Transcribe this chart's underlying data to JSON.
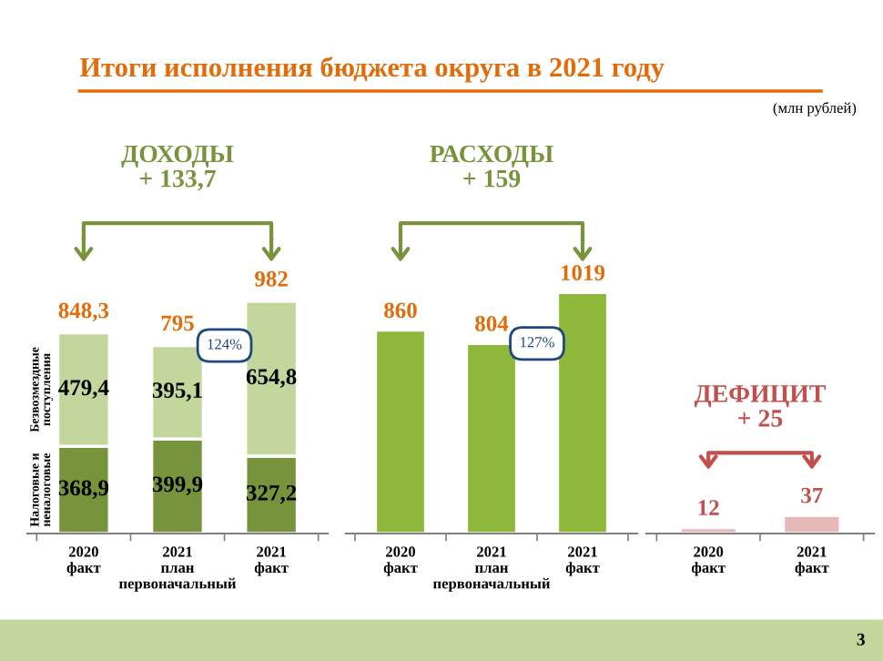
{
  "chart_data": [
    {
      "type": "bar",
      "stacked": true,
      "title": "ДОХОДЫ\n+ 133,7",
      "categories": [
        "2020\nфакт",
        "2021\nплан\nпервоначальный",
        "2021\nфакт"
      ],
      "series": [
        {
          "name": "Налоговые и\nненалоговые",
          "color": "#77933c",
          "values": [
            368.9,
            399.9,
            327.2
          ],
          "value_labels": [
            "368,9",
            "399,9",
            "327,2"
          ]
        },
        {
          "name": "Безвозмездные\nпоступления",
          "color": "#c3d69b",
          "values": [
            479.4,
            395.1,
            654.8
          ],
          "value_labels": [
            "479,4",
            "395,1",
            "654,8"
          ]
        }
      ],
      "totals": [
        "848,3",
        "795",
        "982"
      ],
      "annotations": [
        "Итоги исполнения бюджета округа в 2021 году",
        "(млн рублей)",
        "124%",
        "3"
      ],
      "legend": false
    },
    {
      "type": "bar",
      "title": "РАСХОДЫ\n+ 159",
      "categories": [
        "2020\nфакт",
        "2021\nплан\nпервоначальный",
        "2021\nфакт"
      ],
      "series": [
        {
          "color": "#8db83a",
          "values": [
            860,
            804,
            1019
          ],
          "value_labels": [
            "860",
            "804",
            "1019"
          ]
        }
      ],
      "annotations": [
        "127%"
      ],
      "legend": false
    },
    {
      "type": "bar",
      "title": "ДЕФИЦИТ\n+ 25",
      "categories": [
        "2020\nфакт",
        "2021\nфакт"
      ],
      "series": [
        {
          "color": "#e6b9b8",
          "values": [
            12,
            37
          ],
          "value_labels": [
            "12",
            "37"
          ]
        }
      ],
      "legend": false
    }
  ]
}
